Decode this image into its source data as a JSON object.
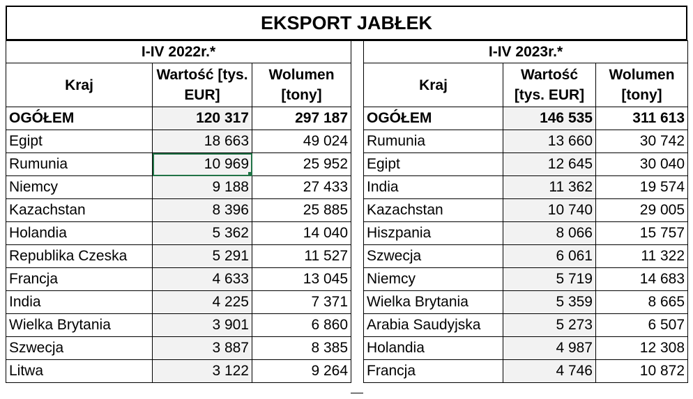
{
  "title": "EKSPORT JABŁEK",
  "left": {
    "period": "I-IV 2022r.*",
    "headers": {
      "country": "Kraj",
      "value": "Wartość [tys. EUR]",
      "volume": "Wolumen [tony]"
    },
    "total": {
      "label": "OGÓŁEM",
      "value": "120 317",
      "volume": "297 187"
    },
    "rows": [
      {
        "country": "Egipt",
        "value": "18 663",
        "volume": "49 024"
      },
      {
        "country": "Rumunia",
        "value": "10 969",
        "volume": "25 952"
      },
      {
        "country": "Niemcy",
        "value": "9 188",
        "volume": "27 433"
      },
      {
        "country": "Kazachstan",
        "value": "8 396",
        "volume": "25 885"
      },
      {
        "country": "Holandia",
        "value": "5 362",
        "volume": "14 040"
      },
      {
        "country": "Republika Czeska",
        "value": "5 291",
        "volume": "11 527"
      },
      {
        "country": "Francja",
        "value": "4 633",
        "volume": "13 045"
      },
      {
        "country": "India",
        "value": "4 225",
        "volume": "7 371"
      },
      {
        "country": "Wielka Brytania",
        "value": "3 901",
        "volume": "6 860"
      },
      {
        "country": "Szwecja",
        "value": "3 887",
        "volume": "8 385"
      },
      {
        "country": "Litwa",
        "value": "3 122",
        "volume": "9 264"
      }
    ]
  },
  "right": {
    "period": "I-IV 2023r.*",
    "headers": {
      "country": "Kraj",
      "value": "Wartość [tys. EUR]",
      "volume": "Wolumen [tony]"
    },
    "total": {
      "label": "OGÓŁEM",
      "value": "146 535",
      "volume": "311 613"
    },
    "rows": [
      {
        "country": "Rumunia",
        "value": "13 660",
        "volume": "30 742"
      },
      {
        "country": "Egipt",
        "value": "12 645",
        "volume": "30 040"
      },
      {
        "country": "India",
        "value": "11 362",
        "volume": "19 574"
      },
      {
        "country": "Kazachstan",
        "value": "10 740",
        "volume": "29 005"
      },
      {
        "country": "Hiszpania",
        "value": "8 066",
        "volume": "15 757"
      },
      {
        "country": "Szwecja",
        "value": "6 061",
        "volume": "11 322"
      },
      {
        "country": "Niemcy",
        "value": "5 719",
        "volume": "14 683"
      },
      {
        "country": "Wielka Brytania",
        "value": "5 359",
        "volume": "8 665"
      },
      {
        "country": "Arabia Saudyjska",
        "value": "5 273",
        "volume": "6 507"
      },
      {
        "country": "Holandia",
        "value": "4 987",
        "volume": "12 308"
      },
      {
        "country": "Francja",
        "value": "4 746",
        "volume": "10 872"
      }
    ]
  },
  "selection": {
    "table": "left",
    "row": 1,
    "column": "value"
  },
  "colors": {
    "selection": "#217346",
    "value_column_fill": "#f2f2f2",
    "border": "#000000"
  }
}
